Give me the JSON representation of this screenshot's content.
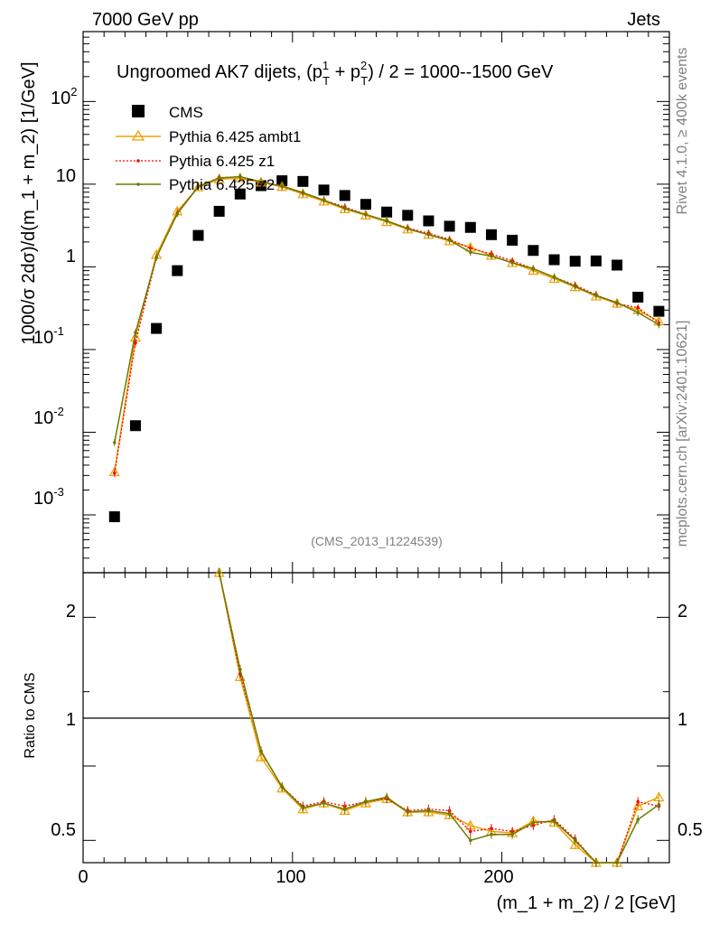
{
  "header": {
    "left": "7000 GeV pp",
    "right": "Jets"
  },
  "side_labels": {
    "rivet": "Rivet 4.1.0, ≥ 400k events",
    "mcplots": "mcplots.cern.ch [arXiv:2401.10621]"
  },
  "title": {
    "main": "Ungroomed AK7 dijets, (p",
    "sup1": "1",
    "sub1": "T",
    "plus": " + p",
    "sup2": "2",
    "sub2": "T",
    "rest": ") / 2 = 1000--1500 GeV"
  },
  "analysis_id": "(CMS_2013_I1224539)",
  "axes": {
    "ylabel_main": "1000/σ  2dσ)/d(m_1 + m_2) [1/GeV]",
    "ylabel_ratio": "Ratio to CMS",
    "xlabel": "(m_1 + m_2) / 2 [GeV]",
    "x_ticks": [
      "0",
      "100",
      "200"
    ],
    "y_ticks_main": [
      "10",
      "1",
      "10"
    ],
    "y_tick_sup": {
      "e3": "-3",
      "e2": "-2",
      "e1": "-1",
      "p2": "2"
    },
    "y_ticks_ratio": [
      "2",
      "1",
      "0.5"
    ]
  },
  "legend": {
    "items": [
      {
        "label": "CMS",
        "color": "#000000"
      },
      {
        "label": "Pythia 6.425 ambt1",
        "color": "#f0a000"
      },
      {
        "label": "Pythia 6.425 z1",
        "color": "#ff0000"
      },
      {
        "label": "Pythia 6.425 z2",
        "color": "#6b7a00"
      }
    ]
  },
  "chart_data": {
    "type": "scatter",
    "title": "Ungroomed AK7 dijets, (pT1 + pT2) / 2 = 1000--1500 GeV",
    "xlabel": "(m_1 + m_2) / 2 [GeV]",
    "ylabel": "1000/σ 2dσ)/d(m_1 + m_2) [1/GeV]",
    "xlim": [
      0,
      280
    ],
    "ylim": [
      0.0002,
      700
    ],
    "yscale": "log",
    "ratio_ylim": [
      0.35,
      2.3
    ],
    "x": [
      15,
      25,
      35,
      45,
      55,
      65,
      75,
      85,
      95,
      105,
      115,
      125,
      135,
      145,
      155,
      165,
      175,
      185,
      195,
      205,
      215,
      225,
      235,
      245,
      255,
      265,
      275
    ],
    "series": [
      {
        "name": "CMS",
        "values": [
          0.00095,
          0.012,
          0.18,
          0.9,
          2.4,
          4.7,
          7.6,
          9.6,
          11.0,
          10.8,
          8.5,
          7.3,
          5.7,
          4.6,
          4.2,
          3.6,
          3.1,
          3.0,
          2.45,
          2.1,
          1.58,
          1.22,
          1.17,
          1.18,
          1.05,
          0.43,
          0.29
        ]
      },
      {
        "name": "Pythia 6.425 ambt1",
        "values": [
          0.0033,
          0.14,
          1.4,
          4.7,
          9.2,
          11.5,
          11.8,
          10.5,
          9.3,
          7.6,
          6.2,
          5.0,
          4.2,
          3.5,
          2.85,
          2.45,
          2.05,
          1.72,
          1.37,
          1.12,
          0.9,
          0.72,
          0.57,
          0.44,
          0.36,
          0.3,
          0.22
        ]
      },
      {
        "name": "Pythia 6.425 z1",
        "values": [
          0.0032,
          0.12,
          1.3,
          4.5,
          9.4,
          12.0,
          12.3,
          10.6,
          9.4,
          7.8,
          6.4,
          5.3,
          4.3,
          3.6,
          2.95,
          2.55,
          2.15,
          1.68,
          1.43,
          1.18,
          0.95,
          0.75,
          0.6,
          0.46,
          0.36,
          0.32,
          0.21
        ]
      },
      {
        "name": "Pythia 6.425 z2",
        "values": [
          0.0075,
          0.16,
          1.3,
          4.4,
          9.3,
          11.9,
          12.3,
          10.7,
          9.5,
          7.9,
          6.4,
          5.1,
          4.3,
          3.6,
          2.9,
          2.45,
          2.1,
          1.5,
          1.35,
          1.12,
          0.95,
          0.75,
          0.58,
          0.45,
          0.37,
          0.28,
          0.2
        ]
      }
    ],
    "ratio_series": [
      {
        "name": "Pythia 6.425 ambt1",
        "values": [
          null,
          null,
          null,
          null,
          null,
          2.4,
          1.6,
          1.06,
          0.85,
          0.71,
          0.75,
          0.7,
          0.75,
          0.78,
          0.69,
          0.69,
          0.67,
          0.6,
          0.56,
          0.55,
          0.63,
          0.62,
          0.47,
          0.34,
          0.34,
          0.73,
          0.79
        ]
      },
      {
        "name": "Pythia 6.425 z1",
        "values": [
          null,
          null,
          null,
          null,
          null,
          2.45,
          1.62,
          1.1,
          0.86,
          0.73,
          0.76,
          0.73,
          0.76,
          0.78,
          0.7,
          0.71,
          0.7,
          0.56,
          0.58,
          0.56,
          0.6,
          0.64,
          0.51,
          0.34,
          0.34,
          0.76,
          0.73
        ]
      },
      {
        "name": "Pythia 6.425 z2",
        "values": [
          null,
          null,
          null,
          null,
          null,
          2.45,
          1.65,
          1.1,
          0.86,
          0.72,
          0.75,
          0.71,
          0.76,
          0.79,
          0.69,
          0.7,
          0.68,
          0.5,
          0.54,
          0.54,
          0.62,
          0.63,
          0.5,
          0.34,
          0.34,
          0.64,
          0.74
        ]
      }
    ]
  }
}
